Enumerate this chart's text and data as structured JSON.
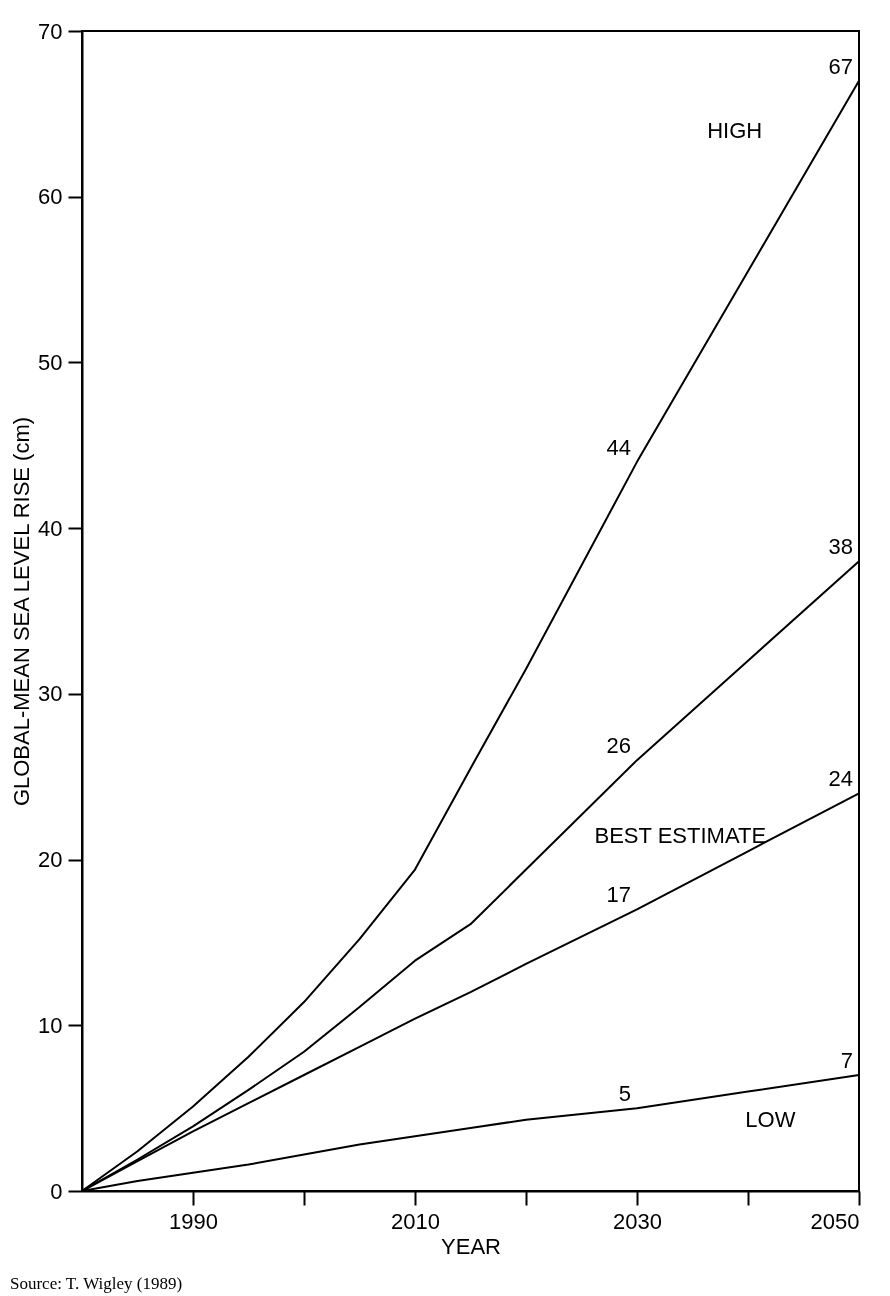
{
  "chart_data": {
    "type": "line",
    "xlabel": "YEAR",
    "ylabel": "GLOBAL-MEAN SEA LEVEL RISE (cm)",
    "x": [
      1980,
      1985,
      1990,
      1995,
      2000,
      2005,
      2010,
      2015,
      2020,
      2030,
      2040,
      2050
    ],
    "series": [
      {
        "color": "#000000",
        "values": [
          0,
          2.4,
          5.1,
          8.1,
          11.4,
          15.2,
          19.4,
          25.5,
          31.5,
          44,
          55.5,
          67
        ],
        "value_labels": [
          null,
          null,
          null,
          null,
          null,
          null,
          null,
          null,
          null,
          "44",
          null,
          "67"
        ]
      },
      {
        "color": "#000000",
        "values": [
          0,
          1.9,
          3.9,
          6.1,
          8.4,
          11.1,
          13.9,
          16.1,
          19.4,
          26,
          32,
          38
        ],
        "value_labels": [
          null,
          null,
          null,
          null,
          null,
          null,
          null,
          null,
          null,
          "26",
          null,
          "38"
        ]
      },
      {
        "color": "#000000",
        "values": [
          0,
          1.8,
          3.6,
          5.3,
          7,
          8.7,
          10.4,
          12,
          13.7,
          17,
          20.5,
          24
        ],
        "value_labels": [
          null,
          null,
          null,
          null,
          null,
          null,
          null,
          null,
          null,
          "17",
          null,
          "24"
        ]
      },
      {
        "color": "#000000",
        "values": [
          0,
          0.6,
          1.1,
          1.6,
          2.2,
          2.8,
          3.3,
          3.8,
          4.3,
          5,
          6,
          7
        ],
        "value_labels": [
          null,
          null,
          null,
          null,
          null,
          null,
          null,
          null,
          null,
          "5",
          null,
          "7"
        ]
      }
    ],
    "xlim": [
      1980,
      2050
    ],
    "xticks": [
      1990,
      {
        "value": 2000,
        "label": null
      },
      2010,
      {
        "value": 2020,
        "label": null
      },
      2030,
      {
        "value": 2040,
        "label": null
      },
      2050
    ],
    "ylim": [
      0,
      70
    ],
    "yticks": [
      0,
      10,
      20,
      30,
      40,
      50,
      60,
      70
    ],
    "annotations": [
      "HIGH",
      "BEST ESTIMATE",
      "LOW",
      "Source: T. Wigley (1989)"
    ]
  }
}
